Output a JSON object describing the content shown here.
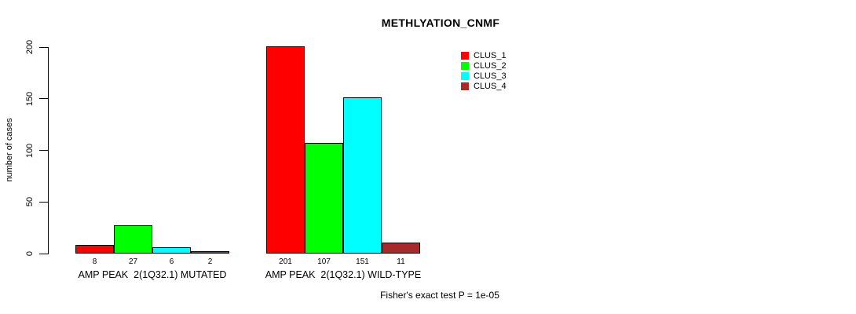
{
  "title": "METHLYATION_CNMF",
  "chart_data": {
    "type": "bar",
    "title": "METHLYATION_CNMF",
    "xlabel": "",
    "ylabel": "number of cases",
    "ylim": [
      0,
      200
    ],
    "yticks": [
      0,
      50,
      100,
      150,
      200
    ],
    "grid": false,
    "legend_position": "top-right",
    "categories": [
      "AMP PEAK  2(1Q32.1) MUTATED",
      "AMP PEAK  2(1Q32.1) WILD-TYPE"
    ],
    "series": [
      {
        "name": "CLUS_1",
        "color": "#FF0000",
        "values": [
          8,
          201
        ]
      },
      {
        "name": "CLUS_2",
        "color": "#00FF00",
        "values": [
          27,
          107
        ]
      },
      {
        "name": "CLUS_3",
        "color": "#00FFFF",
        "values": [
          6,
          151
        ]
      },
      {
        "name": "CLUS_4",
        "color": "#A52A2A",
        "values": [
          2,
          11
        ]
      }
    ],
    "bar_value_labels": [
      [
        8,
        27,
        6,
        2
      ],
      [
        201,
        107,
        151,
        11
      ]
    ],
    "annotation": "Fisher's exact test P = 1e-05"
  },
  "colors": {
    "background": "#FFFFFF",
    "bar_border": "#000000",
    "text": "#000000",
    "clus_1": "#FF0000",
    "clus_2": "#00FF00",
    "clus_3": "#00FFFF",
    "clus_4": "#A52A2A"
  }
}
